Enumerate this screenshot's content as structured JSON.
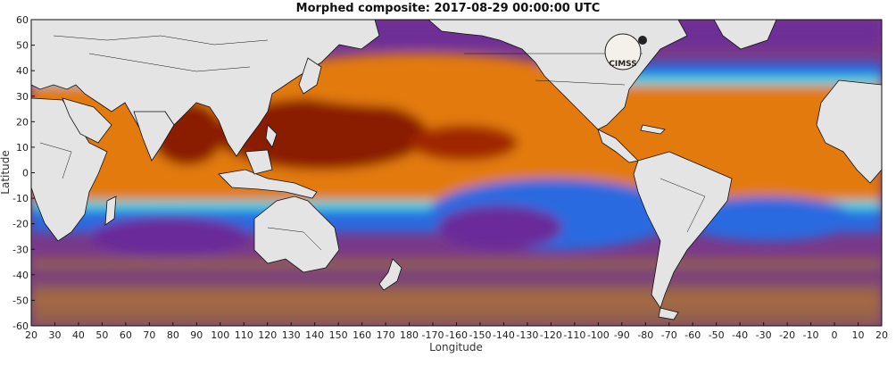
{
  "title": "Morphed composite: 2017-08-29 00:00:00 UTC",
  "logo_text": "CIMSS",
  "chart_data": {
    "type": "heatmap",
    "title": "Morphed composite: 2017-08-29 00:00:00 UTC",
    "xlabel": "Longitude",
    "ylabel": "Latitude",
    "x_ticks": [
      "20",
      "30",
      "40",
      "50",
      "60",
      "70",
      "80",
      "90",
      "100",
      "110",
      "120",
      "130",
      "140",
      "150",
      "160",
      "170",
      "180",
      "-170",
      "-160",
      "-150",
      "-140",
      "-130",
      "-120",
      "-110",
      "-100",
      "-90",
      "-80",
      "-70",
      "-60",
      "-50",
      "-40",
      "-30",
      "-20",
      "-10",
      "0",
      "10",
      "20"
    ],
    "y_ticks": [
      "60",
      "50",
      "40",
      "30",
      "20",
      "10",
      "0",
      "-10",
      "-20",
      "-30",
      "-40",
      "-50",
      "-60"
    ],
    "lon_range": [
      20,
      380
    ],
    "lat_range": [
      -60,
      60
    ],
    "colors": {
      "high": "#7a1a00",
      "upper": "#d96a00",
      "mid": "#f0b050",
      "cyan": "#40d8e0",
      "blue": "#2060e0",
      "low": "#6a2a9a",
      "dry": "#9a6a40",
      "land": "#e4e4e4"
    }
  }
}
